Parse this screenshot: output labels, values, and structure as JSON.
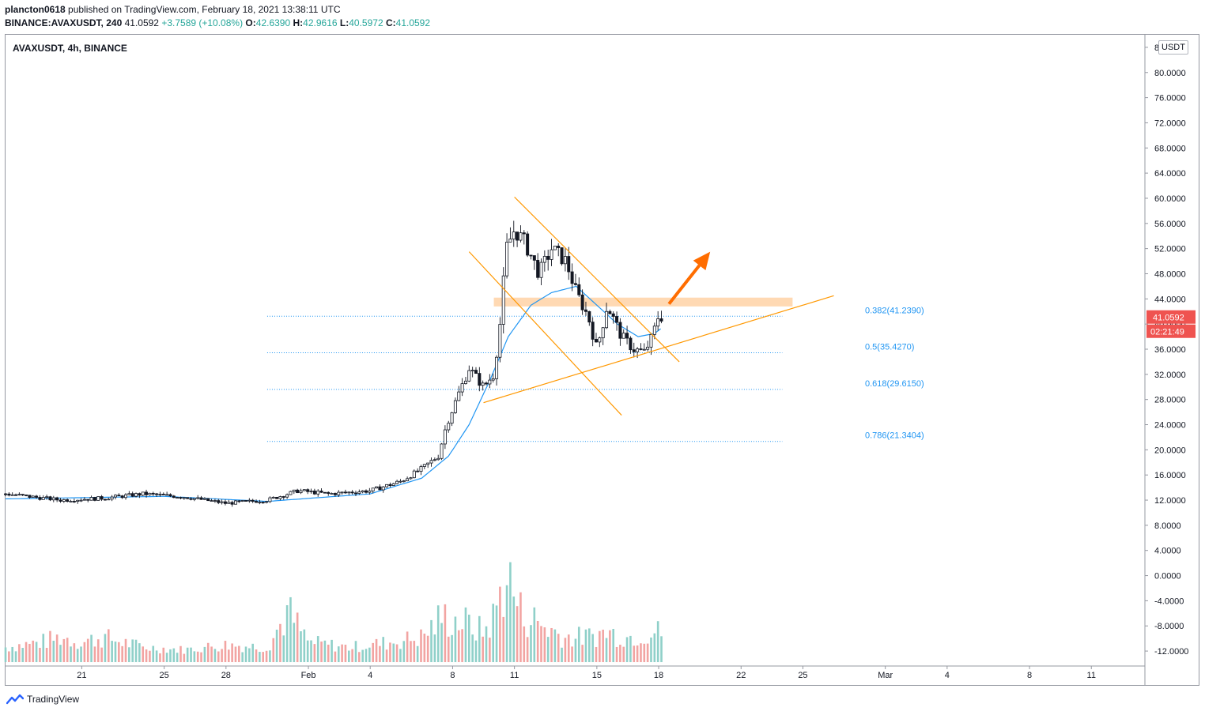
{
  "header": {
    "author": "plancton0618",
    "published_text": "published on TradingView.com, February 18, 2021 13:38:11 UTC",
    "symbol_line": "BINANCE:AVAXUSDT, 240",
    "last": "41.0592",
    "change": "+3.7589 (+10.08%)",
    "o_label": "O:",
    "o_value": "42.6390",
    "h_label": "H:",
    "h_value": "42.9616",
    "l_label": "L:",
    "l_value": "40.5972",
    "c_label": "C:",
    "c_value": "41.0592"
  },
  "pane_title": "AVAXUSDT, 4h, BINANCE",
  "currency_label": "USDT",
  "footer": {
    "brand": "TradingView"
  },
  "colors": {
    "up": "#26a69a",
    "down": "#ef5350",
    "ma": "#2196f3",
    "trendline": "#ff9800",
    "zone": "#ffcc99",
    "arrow": "#ff6d00",
    "fib": "#2196f3",
    "price_label": "#ef5350"
  },
  "chart_data": {
    "type": "candlestick",
    "symbol": "AVAXUSDT",
    "interval": "4h",
    "exchange": "BINANCE",
    "y_ticks": [
      "84.0000",
      "80.0000",
      "76.0000",
      "72.0000",
      "68.0000",
      "64.0000",
      "60.0000",
      "56.0000",
      "52.0000",
      "48.0000",
      "44.0000",
      "40.0000",
      "36.0000",
      "32.0000",
      "28.0000",
      "24.0000",
      "20.0000",
      "16.0000",
      "12.0000",
      "8.0000",
      "4.0000",
      "0.0000",
      "-4.0000",
      "-8.0000",
      "-12.0000"
    ],
    "y_tick_values": [
      84,
      80,
      76,
      72,
      68,
      64,
      60,
      56,
      52,
      48,
      44,
      40,
      36,
      32,
      28,
      24,
      20,
      16,
      12,
      8,
      4,
      0,
      -4,
      -8,
      -12
    ],
    "ylim": [
      -14,
      86
    ],
    "x_ticks": [
      {
        "label": "21",
        "day": 21
      },
      {
        "label": "25",
        "day": 25
      },
      {
        "label": "28",
        "day": 28
      },
      {
        "label": "Feb",
        "day": 32
      },
      {
        "label": "4",
        "day": 35
      },
      {
        "label": "8",
        "day": 39
      },
      {
        "label": "11",
        "day": 42
      },
      {
        "label": "15",
        "day": 46
      },
      {
        "label": "18",
        "day": 49
      },
      {
        "label": "22",
        "day": 53
      },
      {
        "label": "25",
        "day": 56
      },
      {
        "label": "Mar",
        "day": 60
      },
      {
        "label": "4",
        "day": 63
      },
      {
        "label": "8",
        "day": 67
      },
      {
        "label": "11",
        "day": 70
      }
    ],
    "xlim_days": [
      17.3,
      72.6
    ],
    "price_keypoints": [
      {
        "day": 17.3,
        "price": 13.0
      },
      {
        "day": 20.0,
        "price": 12.0
      },
      {
        "day": 22.0,
        "price": 12.3
      },
      {
        "day": 24.0,
        "price": 13.0
      },
      {
        "day": 26.0,
        "price": 12.5
      },
      {
        "day": 28.0,
        "price": 11.5
      },
      {
        "day": 30.0,
        "price": 12.0
      },
      {
        "day": 31.5,
        "price": 13.5
      },
      {
        "day": 33.0,
        "price": 13.0
      },
      {
        "day": 35.0,
        "price": 13.5
      },
      {
        "day": 36.5,
        "price": 15.0
      },
      {
        "day": 37.5,
        "price": 17.0
      },
      {
        "day": 38.3,
        "price": 19.0
      },
      {
        "day": 38.7,
        "price": 24.0
      },
      {
        "day": 39.3,
        "price": 29.0
      },
      {
        "day": 39.8,
        "price": 33.0
      },
      {
        "day": 40.5,
        "price": 30.0
      },
      {
        "day": 41.0,
        "price": 32.0
      },
      {
        "day": 41.3,
        "price": 40.0
      },
      {
        "day": 41.6,
        "price": 52.0
      },
      {
        "day": 42.0,
        "price": 55.0
      },
      {
        "day": 42.5,
        "price": 53.0
      },
      {
        "day": 43.2,
        "price": 48.0
      },
      {
        "day": 43.8,
        "price": 52.0
      },
      {
        "day": 44.5,
        "price": 50.0
      },
      {
        "day": 45.0,
        "price": 45.0
      },
      {
        "day": 45.6,
        "price": 41.0
      },
      {
        "day": 46.0,
        "price": 36.0
      },
      {
        "day": 46.5,
        "price": 43.0
      },
      {
        "day": 47.2,
        "price": 38.0
      },
      {
        "day": 47.8,
        "price": 36.0
      },
      {
        "day": 48.3,
        "price": 35.5
      },
      {
        "day": 48.7,
        "price": 38.0
      },
      {
        "day": 49.0,
        "price": 41.5
      },
      {
        "day": 49.2,
        "price": 41.06
      }
    ],
    "ma_keypoints": [
      {
        "day": 17.3,
        "price": 12.2
      },
      {
        "day": 25.0,
        "price": 12.6
      },
      {
        "day": 30.0,
        "price": 11.8
      },
      {
        "day": 35.0,
        "price": 13.0
      },
      {
        "day": 37.5,
        "price": 15.5
      },
      {
        "day": 38.8,
        "price": 19.0
      },
      {
        "day": 39.8,
        "price": 24.0
      },
      {
        "day": 40.8,
        "price": 31.0
      },
      {
        "day": 41.7,
        "price": 38.0
      },
      {
        "day": 42.8,
        "price": 43.0
      },
      {
        "day": 43.8,
        "price": 45.0
      },
      {
        "day": 45.0,
        "price": 46.0
      },
      {
        "day": 46.0,
        "price": 43.0
      },
      {
        "day": 47.0,
        "price": 40.0
      },
      {
        "day": 48.0,
        "price": 38.0
      },
      {
        "day": 48.8,
        "price": 38.5
      },
      {
        "day": 49.2,
        "price": 39.5
      }
    ],
    "fib_levels": [
      {
        "label": "0.382(41.2390)",
        "price": 41.239
      },
      {
        "label": "0.5(35.4270)",
        "price": 35.427
      },
      {
        "label": "0.618(29.6150)",
        "price": 29.615
      },
      {
        "label": "0.786(21.3404)",
        "price": 21.3404
      }
    ],
    "fib_day_range": [
      30.0,
      55.0
    ],
    "resistance_zone": {
      "day_start": 41.0,
      "day_end": 55.5,
      "price_low": 42.8,
      "price_high": 44.2
    },
    "trendlines": [
      {
        "day1": 42.0,
        "price1": 60.2,
        "day2": 50.0,
        "price2": 34.0
      },
      {
        "day1": 39.8,
        "price1": 51.5,
        "day2": 47.2,
        "price2": 25.5
      },
      {
        "day1": 40.5,
        "price1": 27.5,
        "day2": 57.5,
        "price2": 44.5
      }
    ],
    "arrow": {
      "day1": 49.5,
      "price1": 43.2,
      "day2": 51.5,
      "price2": 51.5
    },
    "last_price": {
      "value": "41.0592",
      "price": 41.0592
    },
    "countdown": "02:21:49",
    "volume_profile": [
      {
        "day": 17.3,
        "h": 2
      },
      {
        "day": 19.0,
        "h": 3
      },
      {
        "day": 20.0,
        "h": 4
      },
      {
        "day": 21.0,
        "h": 3
      },
      {
        "day": 22.0,
        "h": 4
      },
      {
        "day": 23.0,
        "h": 3
      },
      {
        "day": 24.0,
        "h": 2
      },
      {
        "day": 26.0,
        "h": 1.5
      },
      {
        "day": 28.0,
        "h": 2.5
      },
      {
        "day": 30.0,
        "h": 2
      },
      {
        "day": 31.0,
        "h": 9
      },
      {
        "day": 32.0,
        "h": 3
      },
      {
        "day": 34.0,
        "h": 2
      },
      {
        "day": 36.0,
        "h": 3
      },
      {
        "day": 37.5,
        "h": 4
      },
      {
        "day": 38.5,
        "h": 8
      },
      {
        "day": 39.5,
        "h": 7
      },
      {
        "day": 40.5,
        "h": 5
      },
      {
        "day": 41.0,
        "h": 8
      },
      {
        "day": 41.6,
        "h": 17
      },
      {
        "day": 42.3,
        "h": 9
      },
      {
        "day": 43.5,
        "h": 6
      },
      {
        "day": 44.5,
        "h": 4
      },
      {
        "day": 45.5,
        "h": 4
      },
      {
        "day": 46.5,
        "h": 5
      },
      {
        "day": 47.5,
        "h": 4
      },
      {
        "day": 48.5,
        "h": 5
      },
      {
        "day": 49.2,
        "h": 5
      }
    ]
  }
}
